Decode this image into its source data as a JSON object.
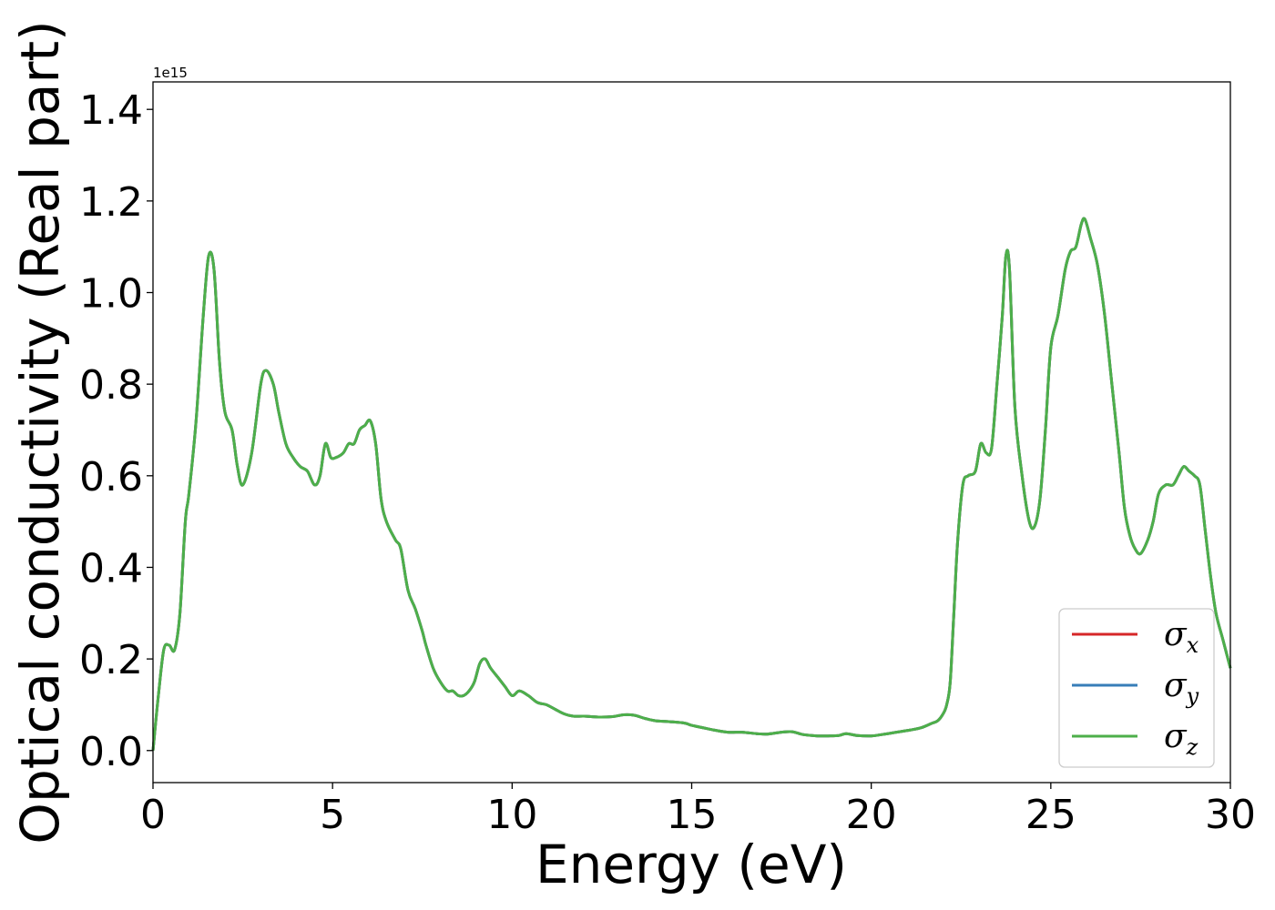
{
  "chart_data": {
    "type": "line",
    "title": "",
    "xlabel": "Energy (eV)",
    "ylabel": "Optical conductivity (Real part)",
    "y_offset_text": "1e15",
    "xlim": [
      0,
      30
    ],
    "ylim": [
      -0.07,
      1.46
    ],
    "x_ticks": [
      0,
      5,
      10,
      15,
      20,
      25,
      30
    ],
    "x_tick_labels": [
      "0",
      "5",
      "10",
      "15",
      "20",
      "25",
      "30"
    ],
    "y_ticks": [
      0.0,
      0.2,
      0.4,
      0.6,
      0.8,
      1.0,
      1.2,
      1.4
    ],
    "y_tick_labels": [
      "0.0",
      "0.2",
      "0.4",
      "0.6",
      "0.8",
      "1.0",
      "1.2",
      "1.4"
    ],
    "grid": false,
    "legend_position": "lower right",
    "x": [
      0,
      0.15,
      0.3,
      0.45,
      0.6,
      0.75,
      0.9,
      1.0,
      1.2,
      1.4,
      1.55,
      1.7,
      1.85,
      2.0,
      2.2,
      2.35,
      2.5,
      2.75,
      3.0,
      3.15,
      3.35,
      3.5,
      3.7,
      3.9,
      4.1,
      4.3,
      4.5,
      4.65,
      4.8,
      4.95,
      5.1,
      5.3,
      5.45,
      5.6,
      5.75,
      5.9,
      6.05,
      6.2,
      6.35,
      6.5,
      6.75,
      6.9,
      7.1,
      7.3,
      7.5,
      7.6,
      7.8,
      8.0,
      8.2,
      8.35,
      8.5,
      8.65,
      8.8,
      8.95,
      9.1,
      9.25,
      9.4,
      9.6,
      9.8,
      10.0,
      10.2,
      10.45,
      10.7,
      10.95,
      11.2,
      11.45,
      11.7,
      12.0,
      12.4,
      12.8,
      13.1,
      13.4,
      13.7,
      14.0,
      14.4,
      14.8,
      15.0,
      15.3,
      15.6,
      16.0,
      16.4,
      16.8,
      17.1,
      17.5,
      17.8,
      18.1,
      18.5,
      18.8,
      19.1,
      19.3,
      19.6,
      20.0,
      20.3,
      20.7,
      21.1,
      21.4,
      21.7,
      21.85,
      22.0,
      22.1,
      22.2,
      22.3,
      22.4,
      22.55,
      22.7,
      22.9,
      23.05,
      23.2,
      23.35,
      23.5,
      23.65,
      23.75,
      23.85,
      24.0,
      24.2,
      24.4,
      24.55,
      24.7,
      24.85,
      25.0,
      25.2,
      25.4,
      25.55,
      25.7,
      25.85,
      25.95,
      26.1,
      26.3,
      26.5,
      26.7,
      26.9,
      27.05,
      27.2,
      27.35,
      27.5,
      27.7,
      27.85,
      28.0,
      28.2,
      28.4,
      28.55,
      28.7,
      28.85,
      29.0,
      29.15,
      29.3,
      29.45,
      29.6,
      29.8,
      30.0
    ],
    "series": [
      {
        "name": "σx",
        "color": "#d62728",
        "values": [
          0.0,
          0.12,
          0.22,
          0.23,
          0.22,
          0.3,
          0.5,
          0.56,
          0.72,
          0.95,
          1.08,
          1.05,
          0.85,
          0.74,
          0.7,
          0.62,
          0.58,
          0.65,
          0.8,
          0.83,
          0.8,
          0.74,
          0.67,
          0.64,
          0.62,
          0.61,
          0.58,
          0.6,
          0.67,
          0.64,
          0.64,
          0.65,
          0.67,
          0.67,
          0.7,
          0.71,
          0.72,
          0.67,
          0.55,
          0.5,
          0.46,
          0.44,
          0.35,
          0.31,
          0.26,
          0.23,
          0.18,
          0.15,
          0.13,
          0.13,
          0.12,
          0.12,
          0.13,
          0.15,
          0.19,
          0.2,
          0.18,
          0.16,
          0.14,
          0.12,
          0.13,
          0.12,
          0.105,
          0.1,
          0.09,
          0.08,
          0.075,
          0.075,
          0.073,
          0.074,
          0.078,
          0.077,
          0.07,
          0.065,
          0.063,
          0.06,
          0.055,
          0.05,
          0.045,
          0.04,
          0.04,
          0.037,
          0.036,
          0.04,
          0.041,
          0.035,
          0.032,
          0.032,
          0.033,
          0.037,
          0.033,
          0.032,
          0.035,
          0.04,
          0.045,
          0.05,
          0.06,
          0.065,
          0.08,
          0.1,
          0.15,
          0.3,
          0.45,
          0.58,
          0.6,
          0.61,
          0.67,
          0.65,
          0.66,
          0.8,
          0.95,
          1.08,
          1.05,
          0.75,
          0.6,
          0.5,
          0.49,
          0.55,
          0.7,
          0.88,
          0.95,
          1.05,
          1.09,
          1.1,
          1.15,
          1.16,
          1.12,
          1.06,
          0.95,
          0.8,
          0.65,
          0.53,
          0.47,
          0.44,
          0.43,
          0.46,
          0.5,
          0.56,
          0.58,
          0.58,
          0.6,
          0.62,
          0.61,
          0.6,
          0.58,
          0.48,
          0.38,
          0.3,
          0.24,
          0.18
        ]
      },
      {
        "name": "σy",
        "color": "#377eb8",
        "values": [
          0.0,
          0.12,
          0.22,
          0.23,
          0.22,
          0.3,
          0.5,
          0.56,
          0.72,
          0.95,
          1.08,
          1.05,
          0.85,
          0.74,
          0.7,
          0.62,
          0.58,
          0.65,
          0.8,
          0.83,
          0.8,
          0.74,
          0.67,
          0.64,
          0.62,
          0.61,
          0.58,
          0.6,
          0.67,
          0.64,
          0.64,
          0.65,
          0.67,
          0.67,
          0.7,
          0.71,
          0.72,
          0.67,
          0.55,
          0.5,
          0.46,
          0.44,
          0.35,
          0.31,
          0.26,
          0.23,
          0.18,
          0.15,
          0.13,
          0.13,
          0.12,
          0.12,
          0.13,
          0.15,
          0.19,
          0.2,
          0.18,
          0.16,
          0.14,
          0.12,
          0.13,
          0.12,
          0.105,
          0.1,
          0.09,
          0.08,
          0.075,
          0.075,
          0.073,
          0.074,
          0.078,
          0.077,
          0.07,
          0.065,
          0.063,
          0.06,
          0.055,
          0.05,
          0.045,
          0.04,
          0.04,
          0.037,
          0.036,
          0.04,
          0.041,
          0.035,
          0.032,
          0.032,
          0.033,
          0.037,
          0.033,
          0.032,
          0.035,
          0.04,
          0.045,
          0.05,
          0.06,
          0.065,
          0.08,
          0.1,
          0.15,
          0.3,
          0.45,
          0.58,
          0.6,
          0.61,
          0.67,
          0.65,
          0.66,
          0.8,
          0.95,
          1.08,
          1.05,
          0.75,
          0.6,
          0.5,
          0.49,
          0.55,
          0.7,
          0.88,
          0.95,
          1.05,
          1.09,
          1.1,
          1.15,
          1.16,
          1.12,
          1.06,
          0.95,
          0.8,
          0.65,
          0.53,
          0.47,
          0.44,
          0.43,
          0.46,
          0.5,
          0.56,
          0.58,
          0.58,
          0.6,
          0.62,
          0.61,
          0.6,
          0.58,
          0.48,
          0.38,
          0.3,
          0.24,
          0.18
        ]
      },
      {
        "name": "σz",
        "color": "#4daf4a",
        "values": [
          0.0,
          0.12,
          0.22,
          0.23,
          0.22,
          0.3,
          0.5,
          0.56,
          0.72,
          0.95,
          1.08,
          1.05,
          0.85,
          0.74,
          0.7,
          0.62,
          0.58,
          0.65,
          0.8,
          0.83,
          0.8,
          0.74,
          0.67,
          0.64,
          0.62,
          0.61,
          0.58,
          0.6,
          0.67,
          0.64,
          0.64,
          0.65,
          0.67,
          0.67,
          0.7,
          0.71,
          0.72,
          0.67,
          0.55,
          0.5,
          0.46,
          0.44,
          0.35,
          0.31,
          0.26,
          0.23,
          0.18,
          0.15,
          0.13,
          0.13,
          0.12,
          0.12,
          0.13,
          0.15,
          0.19,
          0.2,
          0.18,
          0.16,
          0.14,
          0.12,
          0.13,
          0.12,
          0.105,
          0.1,
          0.09,
          0.08,
          0.075,
          0.075,
          0.073,
          0.074,
          0.078,
          0.077,
          0.07,
          0.065,
          0.063,
          0.06,
          0.055,
          0.05,
          0.045,
          0.04,
          0.04,
          0.037,
          0.036,
          0.04,
          0.041,
          0.035,
          0.032,
          0.032,
          0.033,
          0.037,
          0.033,
          0.032,
          0.035,
          0.04,
          0.045,
          0.05,
          0.06,
          0.065,
          0.08,
          0.1,
          0.15,
          0.3,
          0.45,
          0.58,
          0.6,
          0.61,
          0.67,
          0.65,
          0.66,
          0.8,
          0.95,
          1.08,
          1.05,
          0.75,
          0.6,
          0.5,
          0.49,
          0.55,
          0.7,
          0.88,
          0.95,
          1.05,
          1.09,
          1.1,
          1.15,
          1.16,
          1.12,
          1.06,
          0.95,
          0.8,
          0.65,
          0.53,
          0.47,
          0.44,
          0.43,
          0.46,
          0.5,
          0.56,
          0.58,
          0.58,
          0.6,
          0.62,
          0.61,
          0.6,
          0.58,
          0.48,
          0.38,
          0.3,
          0.24,
          0.18
        ]
      }
    ]
  }
}
